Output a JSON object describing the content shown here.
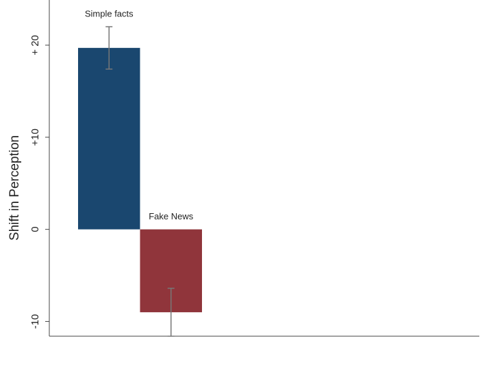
{
  "chart_data": {
    "type": "bar",
    "y_label": "Shift in Perception",
    "categories": [
      "Simple facts",
      "Fake News"
    ],
    "series": [
      {
        "colors": [
          "#1a476f",
          "#90353b"
        ],
        "values": [
          19.7,
          -9
        ],
        "errors": [
          2.3,
          2.6
        ]
      }
    ],
    "ylim": [
      -11.6,
      24.9
    ],
    "yticks": [
      {
        "value": -10,
        "label": "-10"
      },
      {
        "value": 0,
        "label": "0"
      },
      {
        "value": 10,
        "label": "+10"
      },
      {
        "value": 20,
        "label": "+ 20"
      }
    ],
    "grid": false
  }
}
